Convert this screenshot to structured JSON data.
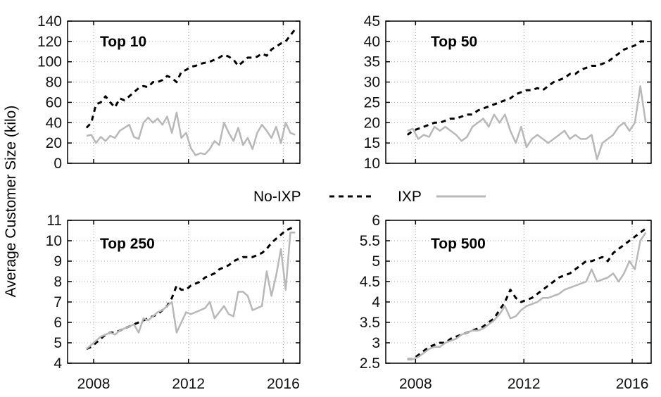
{
  "figure": {
    "ylabel": "Average Customer Size (kilo)",
    "legend": [
      {
        "name": "No-IXP",
        "color": "#000000",
        "style": "dashed"
      },
      {
        "name": "IXP",
        "color": "#b8b8b8",
        "style": "solid"
      }
    ]
  },
  "chart_data": [
    {
      "type": "line",
      "title": "Top 10",
      "xlabel": "",
      "ylabel": "Average Customer Size (kilo)",
      "xlim": [
        2006.9,
        2016.7
      ],
      "ylim": [
        0,
        140
      ],
      "xticks": [
        2008,
        2012,
        2016
      ],
      "yticks": [
        0,
        20,
        40,
        60,
        80,
        100,
        120,
        140
      ],
      "ytick_labels": [
        "0",
        "20",
        "40",
        "60",
        "80",
        "100",
        "120",
        "140"
      ],
      "grid": true,
      "series": [
        {
          "name": "No-IXP",
          "color": "#000000",
          "style": "dashed",
          "x": [
            2007.7,
            2007.9,
            2008.1,
            2008.3,
            2008.5,
            2008.7,
            2008.9,
            2009.1,
            2009.3,
            2009.5,
            2009.7,
            2009.9,
            2010.1,
            2010.3,
            2010.5,
            2010.7,
            2010.9,
            2011.1,
            2011.3,
            2011.5,
            2011.7,
            2011.9,
            2012.1,
            2012.3,
            2012.5,
            2012.7,
            2012.9,
            2013.1,
            2013.3,
            2013.5,
            2013.7,
            2013.9,
            2014.1,
            2014.3,
            2014.5,
            2014.7,
            2014.9,
            2015.1,
            2015.3,
            2015.5,
            2015.7,
            2015.9,
            2016.1,
            2016.3,
            2016.5
          ],
          "y": [
            35,
            40,
            58,
            60,
            66,
            60,
            55,
            64,
            62,
            66,
            70,
            74,
            76,
            75,
            80,
            80,
            82,
            86,
            84,
            80,
            90,
            92,
            95,
            96,
            98,
            99,
            100,
            102,
            104,
            107,
            105,
            102,
            96,
            100,
            104,
            104,
            105,
            108,
            106,
            112,
            115,
            118,
            120,
            126,
            132
          ]
        },
        {
          "name": "IXP",
          "color": "#b8b8b8",
          "style": "solid",
          "x": [
            2007.7,
            2007.9,
            2008.1,
            2008.3,
            2008.5,
            2008.7,
            2008.9,
            2009.1,
            2009.5,
            2009.7,
            2009.9,
            2010.1,
            2010.3,
            2010.5,
            2010.7,
            2010.9,
            2011.1,
            2011.3,
            2011.5,
            2011.7,
            2011.9,
            2012.1,
            2012.3,
            2012.5,
            2012.7,
            2012.9,
            2013.1,
            2013.3,
            2013.5,
            2013.7,
            2013.9,
            2014.1,
            2014.3,
            2014.5,
            2014.7,
            2014.9,
            2015.1,
            2015.3,
            2015.5,
            2015.7,
            2015.9,
            2016.1,
            2016.3,
            2016.5
          ],
          "y": [
            27,
            28,
            20,
            26,
            22,
            27,
            25,
            32,
            38,
            26,
            24,
            40,
            45,
            40,
            44,
            38,
            46,
            30,
            50,
            25,
            30,
            15,
            8,
            10,
            9,
            14,
            22,
            18,
            40,
            30,
            22,
            35,
            18,
            25,
            14,
            30,
            38,
            32,
            25,
            36,
            20,
            40,
            30,
            28
          ]
        }
      ]
    },
    {
      "type": "line",
      "title": "Top 50",
      "xlabel": "",
      "ylabel": "",
      "xlim": [
        2006.9,
        2016.7
      ],
      "ylim": [
        10,
        45
      ],
      "xticks": [
        2008,
        2012,
        2016
      ],
      "yticks": [
        10,
        15,
        20,
        25,
        30,
        35,
        40,
        45
      ],
      "ytick_labels": [
        "10",
        "15",
        "20",
        "25",
        "30",
        "35",
        "40",
        "45"
      ],
      "grid": true,
      "series": [
        {
          "name": "No-IXP",
          "color": "#000000",
          "style": "dashed",
          "x": [
            2007.7,
            2007.9,
            2008.1,
            2008.3,
            2008.5,
            2008.7,
            2008.9,
            2009.1,
            2009.3,
            2009.5,
            2009.7,
            2009.9,
            2010.1,
            2010.3,
            2010.5,
            2010.7,
            2010.9,
            2011.1,
            2011.3,
            2011.5,
            2011.7,
            2011.9,
            2012.1,
            2012.3,
            2012.5,
            2012.7,
            2012.9,
            2013.1,
            2013.3,
            2013.5,
            2013.7,
            2013.9,
            2014.1,
            2014.3,
            2014.5,
            2014.7,
            2014.9,
            2015.1,
            2015.3,
            2015.5,
            2015.7,
            2015.9,
            2016.1,
            2016.3,
            2016.5
          ],
          "y": [
            17,
            18,
            18.5,
            19,
            19.5,
            20,
            20,
            20.5,
            21,
            21,
            21.5,
            22,
            22,
            23,
            23.5,
            24,
            24.5,
            25,
            25.5,
            26,
            27,
            27.5,
            28,
            28,
            28.5,
            28,
            29,
            30,
            30.5,
            31,
            32,
            32,
            33,
            33.5,
            34,
            34,
            34.5,
            35,
            36,
            37,
            38,
            38.5,
            39,
            40,
            40
          ]
        },
        {
          "name": "IXP",
          "color": "#b8b8b8",
          "style": "solid",
          "x": [
            2007.7,
            2007.9,
            2008.1,
            2008.3,
            2008.5,
            2008.7,
            2008.9,
            2009.1,
            2009.5,
            2009.7,
            2009.9,
            2010.1,
            2010.3,
            2010.5,
            2010.7,
            2010.9,
            2011.1,
            2011.3,
            2011.5,
            2011.7,
            2011.9,
            2012.1,
            2012.3,
            2012.5,
            2012.7,
            2012.9,
            2013.1,
            2013.3,
            2013.5,
            2013.7,
            2013.9,
            2014.1,
            2014.3,
            2014.5,
            2014.7,
            2014.9,
            2015.1,
            2015.3,
            2015.5,
            2015.7,
            2015.9,
            2016.1,
            2016.3,
            2016.5
          ],
          "y": [
            18,
            18.5,
            16,
            17,
            16.5,
            19,
            18,
            19,
            17,
            15.5,
            16.5,
            19,
            20,
            21,
            19,
            22,
            20,
            22,
            18,
            15,
            19,
            14,
            16,
            17,
            16,
            15,
            16,
            17,
            18,
            16,
            17,
            16,
            16,
            17,
            11,
            15,
            16,
            17,
            19,
            20,
            18,
            20,
            29,
            20
          ]
        }
      ]
    },
    {
      "type": "line",
      "title": "Top 250",
      "xlabel": "",
      "ylabel": "Average Customer Size (kilo)",
      "xlim": [
        2006.9,
        2016.7
      ],
      "ylim": [
        4,
        11
      ],
      "xticks": [
        2008,
        2012,
        2016
      ],
      "xtick_labels": [
        "2008",
        "2012",
        "2016"
      ],
      "yticks": [
        4,
        5,
        6,
        7,
        8,
        9,
        10,
        11
      ],
      "ytick_labels": [
        "4",
        "5",
        "6",
        "7",
        "8",
        "9",
        "10",
        "11"
      ],
      "grid": true,
      "series": [
        {
          "name": "No-IXP",
          "color": "#000000",
          "style": "dashed",
          "x": [
            2007.7,
            2007.9,
            2008.1,
            2008.3,
            2008.5,
            2008.7,
            2008.9,
            2009.1,
            2009.3,
            2009.5,
            2009.7,
            2009.9,
            2010.1,
            2010.3,
            2010.5,
            2010.7,
            2010.9,
            2011.1,
            2011.3,
            2011.5,
            2011.7,
            2011.9,
            2012.1,
            2012.3,
            2012.5,
            2012.7,
            2012.9,
            2013.1,
            2013.3,
            2013.5,
            2013.7,
            2013.9,
            2014.1,
            2014.3,
            2014.5,
            2014.7,
            2014.9,
            2015.1,
            2015.3,
            2015.5,
            2015.7,
            2015.9,
            2016.1,
            2016.3,
            2016.5
          ],
          "y": [
            4.7,
            4.8,
            5.0,
            5.2,
            5.4,
            5.5,
            5.5,
            5.6,
            5.7,
            5.8,
            5.9,
            6.0,
            6.1,
            6.2,
            6.3,
            6.4,
            6.6,
            6.8,
            7.2,
            7.8,
            7.6,
            7.6,
            7.8,
            7.9,
            8.0,
            8.2,
            8.3,
            8.4,
            8.6,
            8.7,
            8.8,
            9.0,
            9.1,
            9.2,
            9.2,
            9.2,
            9.3,
            9.4,
            9.6,
            9.9,
            10.1,
            10.3,
            10.5,
            10.6,
            10.7
          ]
        },
        {
          "name": "IXP",
          "color": "#b8b8b8",
          "style": "solid",
          "x": [
            2007.7,
            2007.9,
            2008.1,
            2008.3,
            2008.5,
            2008.7,
            2008.9,
            2009.1,
            2009.3,
            2009.5,
            2009.7,
            2009.9,
            2010.1,
            2010.3,
            2010.5,
            2010.7,
            2010.9,
            2011.1,
            2011.3,
            2011.5,
            2011.7,
            2011.9,
            2012.1,
            2012.3,
            2012.5,
            2012.7,
            2012.9,
            2013.1,
            2013.3,
            2013.5,
            2013.7,
            2013.9,
            2014.1,
            2014.3,
            2014.5,
            2014.7,
            2014.9,
            2015.1,
            2015.3,
            2015.5,
            2015.7,
            2015.9,
            2016.1,
            2016.3,
            2016.5
          ],
          "y": [
            4.7,
            4.9,
            5.1,
            5.3,
            5.4,
            5.5,
            5.4,
            5.6,
            5.7,
            5.8,
            5.9,
            5.5,
            6.2,
            6.1,
            6.3,
            6.5,
            6.6,
            6.8,
            7.0,
            5.5,
            6.0,
            6.5,
            6.4,
            6.5,
            6.6,
            6.7,
            7.0,
            6.2,
            6.5,
            6.8,
            6.4,
            6.3,
            7.5,
            7.5,
            7.3,
            6.6,
            6.7,
            6.8,
            8.5,
            7.3,
            8.3,
            9.6,
            7.6,
            10.4,
            10.4
          ]
        }
      ]
    },
    {
      "type": "line",
      "title": "Top 500",
      "xlabel": "",
      "ylabel": "",
      "xlim": [
        2006.9,
        2016.7
      ],
      "ylim": [
        2.5,
        6
      ],
      "xticks": [
        2008,
        2012,
        2016
      ],
      "xtick_labels": [
        "2008",
        "2012",
        "2016"
      ],
      "yticks": [
        2.5,
        3,
        3.5,
        4,
        4.5,
        5,
        5.5,
        6
      ],
      "ytick_labels": [
        "2.5",
        "3",
        "3.5",
        "4",
        "4.5",
        "5",
        "5.5",
        "6"
      ],
      "grid": true,
      "series": [
        {
          "name": "No-IXP",
          "color": "#000000",
          "style": "dashed",
          "x": [
            2007.7,
            2007.9,
            2008.1,
            2008.3,
            2008.5,
            2008.7,
            2008.9,
            2009.1,
            2009.3,
            2009.5,
            2009.7,
            2009.9,
            2010.1,
            2010.3,
            2010.5,
            2010.7,
            2010.9,
            2011.1,
            2011.3,
            2011.5,
            2011.7,
            2011.9,
            2012.1,
            2012.3,
            2012.5,
            2012.7,
            2012.9,
            2013.1,
            2013.3,
            2013.5,
            2013.7,
            2013.9,
            2014.1,
            2014.3,
            2014.5,
            2014.7,
            2014.9,
            2015.1,
            2015.3,
            2015.5,
            2015.7,
            2015.9,
            2016.1,
            2016.3,
            2016.5
          ],
          "y": [
            2.6,
            2.6,
            2.7,
            2.8,
            2.9,
            2.95,
            3.0,
            3.0,
            3.1,
            3.15,
            3.2,
            3.25,
            3.3,
            3.35,
            3.4,
            3.5,
            3.6,
            3.8,
            4.0,
            4.3,
            4.1,
            4.0,
            4.05,
            4.1,
            4.2,
            4.3,
            4.4,
            4.5,
            4.6,
            4.65,
            4.7,
            4.8,
            4.9,
            5.0,
            5.0,
            5.05,
            5.1,
            5.0,
            5.2,
            5.3,
            5.4,
            5.5,
            5.6,
            5.7,
            5.8
          ]
        },
        {
          "name": "IXP",
          "color": "#b8b8b8",
          "style": "solid",
          "x": [
            2007.7,
            2007.9,
            2008.1,
            2008.3,
            2008.5,
            2008.7,
            2008.9,
            2009.1,
            2009.3,
            2009.5,
            2009.7,
            2009.9,
            2010.1,
            2010.3,
            2010.5,
            2010.7,
            2010.9,
            2011.1,
            2011.3,
            2011.5,
            2011.7,
            2011.9,
            2012.1,
            2012.3,
            2012.5,
            2012.7,
            2012.9,
            2013.1,
            2013.3,
            2013.5,
            2013.7,
            2013.9,
            2014.1,
            2014.3,
            2014.5,
            2014.7,
            2014.9,
            2015.1,
            2015.3,
            2015.5,
            2015.7,
            2015.9,
            2016.1,
            2016.3,
            2016.5
          ],
          "y": [
            2.6,
            2.6,
            2.65,
            2.75,
            2.85,
            2.9,
            2.9,
            3.0,
            3.05,
            3.1,
            3.2,
            3.25,
            3.3,
            3.3,
            3.35,
            3.45,
            3.55,
            3.7,
            3.9,
            3.6,
            3.65,
            3.8,
            3.9,
            3.95,
            4.0,
            4.1,
            4.1,
            4.15,
            4.2,
            4.3,
            4.35,
            4.4,
            4.45,
            4.5,
            4.8,
            4.5,
            4.55,
            4.6,
            4.7,
            4.5,
            4.7,
            5.0,
            4.8,
            5.5,
            5.7
          ]
        }
      ]
    }
  ]
}
